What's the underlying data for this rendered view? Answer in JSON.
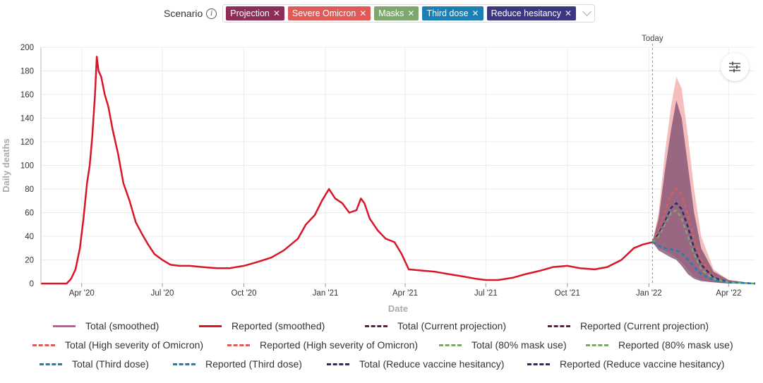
{
  "scenario_selector": {
    "label": "Scenario",
    "chips": [
      {
        "label": "Projection",
        "color": "#8e2d5a"
      },
      {
        "label": "Severe Omicron",
        "color": "#e05b57"
      },
      {
        "label": "Masks",
        "color": "#7ea770"
      },
      {
        "label": "Third dose",
        "color": "#1b7fb3"
      },
      {
        "label": "Reduce hesitancy",
        "color": "#3d3680"
      }
    ]
  },
  "chart_data": {
    "type": "line",
    "xlabel": "Date",
    "ylabel": "Daily deaths",
    "ylim": [
      0,
      200
    ],
    "yticks": [
      0,
      20,
      40,
      60,
      80,
      100,
      120,
      140,
      160,
      180,
      200
    ],
    "xlim": [
      "2020-02-15",
      "2022-05-01"
    ],
    "xticks": [
      {
        "label": "Apr '20",
        "date": "2020-04-01"
      },
      {
        "label": "Jul '20",
        "date": "2020-07-01"
      },
      {
        "label": "Oct '20",
        "date": "2020-10-01"
      },
      {
        "label": "Jan '21",
        "date": "2021-01-01"
      },
      {
        "label": "Apr '21",
        "date": "2021-04-01"
      },
      {
        "label": "Jul '21",
        "date": "2021-07-01"
      },
      {
        "label": "Oct '21",
        "date": "2021-10-01"
      },
      {
        "label": "Jan '22",
        "date": "2022-01-01"
      },
      {
        "label": "Apr '22",
        "date": "2022-04-01"
      }
    ],
    "today": {
      "label": "Today",
      "date": "2022-01-05"
    },
    "grid": true,
    "series": [
      {
        "name": "Reported (smoothed)",
        "color": "#d9152a",
        "points": [
          [
            "2020-02-15",
            0
          ],
          [
            "2020-03-01",
            0
          ],
          [
            "2020-03-15",
            0
          ],
          [
            "2020-03-20",
            4
          ],
          [
            "2020-03-25",
            12
          ],
          [
            "2020-03-30",
            30
          ],
          [
            "2020-04-03",
            55
          ],
          [
            "2020-04-07",
            85
          ],
          [
            "2020-04-10",
            100
          ],
          [
            "2020-04-13",
            125
          ],
          [
            "2020-04-16",
            160
          ],
          [
            "2020-04-18",
            192
          ],
          [
            "2020-04-20",
            180
          ],
          [
            "2020-04-23",
            175
          ],
          [
            "2020-04-27",
            160
          ],
          [
            "2020-05-01",
            150
          ],
          [
            "2020-05-06",
            130
          ],
          [
            "2020-05-12",
            110
          ],
          [
            "2020-05-18",
            85
          ],
          [
            "2020-05-25",
            70
          ],
          [
            "2020-06-01",
            52
          ],
          [
            "2020-06-08",
            42
          ],
          [
            "2020-06-15",
            33
          ],
          [
            "2020-06-22",
            25
          ],
          [
            "2020-07-01",
            20
          ],
          [
            "2020-07-10",
            16
          ],
          [
            "2020-07-20",
            15
          ],
          [
            "2020-08-01",
            15
          ],
          [
            "2020-08-15",
            14
          ],
          [
            "2020-09-01",
            13
          ],
          [
            "2020-09-15",
            13
          ],
          [
            "2020-10-01",
            15
          ],
          [
            "2020-10-15",
            18
          ],
          [
            "2020-11-01",
            22
          ],
          [
            "2020-11-15",
            28
          ],
          [
            "2020-12-01",
            38
          ],
          [
            "2020-12-10",
            50
          ],
          [
            "2020-12-20",
            58
          ],
          [
            "2020-12-28",
            70
          ],
          [
            "2021-01-05",
            80
          ],
          [
            "2021-01-12",
            72
          ],
          [
            "2021-01-20",
            68
          ],
          [
            "2021-01-28",
            60
          ],
          [
            "2021-02-05",
            62
          ],
          [
            "2021-02-10",
            72
          ],
          [
            "2021-02-14",
            68
          ],
          [
            "2021-02-20",
            55
          ],
          [
            "2021-03-01",
            45
          ],
          [
            "2021-03-10",
            38
          ],
          [
            "2021-03-20",
            35
          ],
          [
            "2021-03-28",
            25
          ],
          [
            "2021-04-05",
            12
          ],
          [
            "2021-04-20",
            11
          ],
          [
            "2021-05-05",
            10
          ],
          [
            "2021-05-20",
            8
          ],
          [
            "2021-06-05",
            6
          ],
          [
            "2021-06-20",
            4
          ],
          [
            "2021-07-01",
            3
          ],
          [
            "2021-07-15",
            3
          ],
          [
            "2021-08-01",
            5
          ],
          [
            "2021-08-15",
            8
          ],
          [
            "2021-09-01",
            11
          ],
          [
            "2021-09-15",
            14
          ],
          [
            "2021-10-01",
            15
          ],
          [
            "2021-10-15",
            13
          ],
          [
            "2021-11-01",
            12
          ],
          [
            "2021-11-15",
            14
          ],
          [
            "2021-12-01",
            20
          ],
          [
            "2021-12-15",
            30
          ],
          [
            "2021-12-25",
            33
          ],
          [
            "2022-01-05",
            35
          ]
        ]
      },
      {
        "name": "Total (Current projection)",
        "color": "#5c1f4a",
        "band_color": "#7b4a6f",
        "band": [
          [
            "2022-01-05",
            35,
            35
          ],
          [
            "2022-01-12",
            28,
            55
          ],
          [
            "2022-01-19",
            25,
            95
          ],
          [
            "2022-01-26",
            22,
            130
          ],
          [
            "2022-02-01",
            20,
            155
          ],
          [
            "2022-02-07",
            15,
            140
          ],
          [
            "2022-02-14",
            8,
            100
          ],
          [
            "2022-02-21",
            4,
            60
          ],
          [
            "2022-03-01",
            2,
            30
          ],
          [
            "2022-03-15",
            1,
            10
          ],
          [
            "2022-04-01",
            0,
            3
          ],
          [
            "2022-05-01",
            0,
            0
          ]
        ]
      },
      {
        "name": "Total (High severity of Omicron)",
        "color": "#e05b57",
        "band_color": "#f1a8a5",
        "band": [
          [
            "2022-01-05",
            35,
            35
          ],
          [
            "2022-01-12",
            30,
            60
          ],
          [
            "2022-01-19",
            28,
            110
          ],
          [
            "2022-01-26",
            25,
            150
          ],
          [
            "2022-02-01",
            22,
            175
          ],
          [
            "2022-02-07",
            18,
            165
          ],
          [
            "2022-02-14",
            12,
            125
          ],
          [
            "2022-02-21",
            6,
            80
          ],
          [
            "2022-03-01",
            3,
            40
          ],
          [
            "2022-03-15",
            1,
            12
          ],
          [
            "2022-04-01",
            0,
            3
          ],
          [
            "2022-05-01",
            0,
            0
          ]
        ],
        "points": [
          [
            "2022-01-05",
            35
          ],
          [
            "2022-01-12",
            45
          ],
          [
            "2022-01-19",
            60
          ],
          [
            "2022-01-26",
            75
          ],
          [
            "2022-02-01",
            80
          ],
          [
            "2022-02-07",
            75
          ],
          [
            "2022-02-14",
            58
          ],
          [
            "2022-02-21",
            38
          ],
          [
            "2022-03-01",
            20
          ],
          [
            "2022-03-15",
            6
          ],
          [
            "2022-04-01",
            1
          ],
          [
            "2022-05-01",
            0
          ]
        ]
      },
      {
        "name": "Total (Reduce vaccine hesitancy)",
        "color": "#2b2a6b",
        "points": [
          [
            "2022-01-05",
            35
          ],
          [
            "2022-01-12",
            42
          ],
          [
            "2022-01-19",
            52
          ],
          [
            "2022-01-26",
            64
          ],
          [
            "2022-02-01",
            68
          ],
          [
            "2022-02-07",
            63
          ],
          [
            "2022-02-14",
            48
          ],
          [
            "2022-02-21",
            30
          ],
          [
            "2022-03-01",
            16
          ],
          [
            "2022-03-15",
            5
          ],
          [
            "2022-04-01",
            1
          ],
          [
            "2022-05-01",
            0
          ]
        ]
      },
      {
        "name": "Total (80% mask use)",
        "color": "#7ea770",
        "points": [
          [
            "2022-01-05",
            35
          ],
          [
            "2022-01-12",
            40
          ],
          [
            "2022-01-19",
            50
          ],
          [
            "2022-01-26",
            60
          ],
          [
            "2022-02-01",
            62
          ],
          [
            "2022-02-07",
            55
          ],
          [
            "2022-02-14",
            40
          ],
          [
            "2022-02-21",
            25
          ],
          [
            "2022-03-01",
            12
          ],
          [
            "2022-03-15",
            4
          ],
          [
            "2022-04-01",
            1
          ],
          [
            "2022-05-01",
            0
          ]
        ]
      },
      {
        "name": "Total (Third dose)",
        "color": "#1b7fb3",
        "points": [
          [
            "2022-01-05",
            35
          ],
          [
            "2022-01-12",
            32
          ],
          [
            "2022-01-19",
            30
          ],
          [
            "2022-01-26",
            29
          ],
          [
            "2022-02-01",
            28
          ],
          [
            "2022-02-07",
            26
          ],
          [
            "2022-02-14",
            20
          ],
          [
            "2022-02-21",
            14
          ],
          [
            "2022-03-01",
            8
          ],
          [
            "2022-03-15",
            3
          ],
          [
            "2022-04-01",
            1
          ],
          [
            "2022-05-01",
            0
          ]
        ]
      }
    ]
  },
  "legend": [
    {
      "label": "Total (smoothed)",
      "color": "#c15aa0",
      "style": "solid"
    },
    {
      "label": "Reported (smoothed)",
      "color": "#d9152a",
      "style": "solid"
    },
    {
      "label": "Total (Current projection)",
      "color": "#5c1f4a",
      "style": "dashed"
    },
    {
      "label": "Reported (Current projection)",
      "color": "#5c1f4a",
      "style": "dashed"
    },
    {
      "label": "Total (High severity of Omicron)",
      "color": "#e05b57",
      "style": "dashed"
    },
    {
      "label": "Reported (High severity of Omicron)",
      "color": "#e05b57",
      "style": "dashed"
    },
    {
      "label": "Total (80% mask use)",
      "color": "#7ea770",
      "style": "dashed"
    },
    {
      "label": "Reported (80% mask use)",
      "color": "#7ea770",
      "style": "dashed"
    },
    {
      "label": "Total (Third dose)",
      "color": "#1b7fb3",
      "style": "dashed"
    },
    {
      "label": "Reported (Third dose)",
      "color": "#1b7fb3",
      "style": "dashed"
    },
    {
      "label": "Total (Reduce vaccine hesitancy)",
      "color": "#2b2a6b",
      "style": "dashed"
    },
    {
      "label": "Reported (Reduce vaccine hesitancy)",
      "color": "#2b2a6b",
      "style": "dashed"
    }
  ],
  "settings_icon": "sliders-icon"
}
